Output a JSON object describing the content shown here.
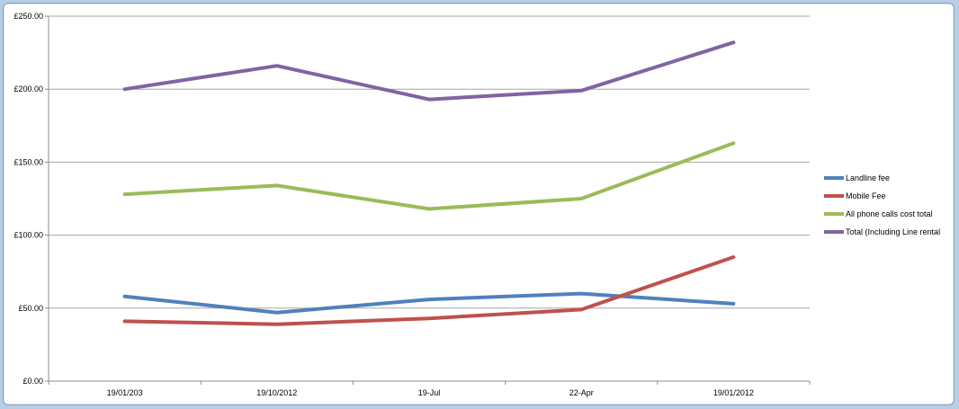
{
  "chart_data": {
    "type": "line",
    "categories": [
      "19/01/203",
      "19/10/2012",
      "19-Jul",
      "22-Apr",
      "19/01/2012"
    ],
    "y_ticks": [
      "£0.00",
      "£50.00",
      "£100.00",
      "£150.00",
      "£200.00",
      "£250.00"
    ],
    "ylim": [
      0,
      250
    ],
    "grid": true,
    "legend": "right",
    "series": [
      {
        "name": "Landline fee",
        "color": "#4f81bd",
        "values": [
          58,
          47,
          56,
          60,
          53
        ]
      },
      {
        "name": "Mobile Fee",
        "color": "#c0504d",
        "values": [
          41,
          39,
          43,
          49,
          85
        ]
      },
      {
        "name": "All phone calls cost total",
        "color": "#9bbb59",
        "values": [
          128,
          134,
          118,
          125,
          163
        ]
      },
      {
        "name": "Total (Including Line rental",
        "color": "#8064a2",
        "values": [
          200,
          216,
          193,
          199,
          232
        ]
      }
    ]
  }
}
